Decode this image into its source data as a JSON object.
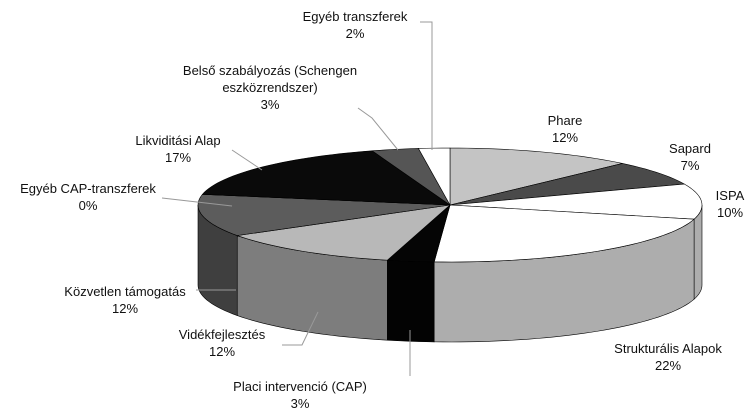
{
  "chart_data": {
    "type": "pie",
    "categories": [
      "Phare",
      "Sapard",
      "ISPA",
      "Strukturális Alapok",
      "Placi intervenció (CAP)",
      "Vidékfejlesztés",
      "Közvetlen támogatás",
      "Egyéb CAP-transzferek",
      "Likviditási Alap",
      "Belső szabályozás (Schengen eszközrendszer)",
      "Egyéb transzferek"
    ],
    "values": [
      12,
      7,
      10,
      22,
      3,
      12,
      12,
      0,
      17,
      3,
      2
    ],
    "value_labels": [
      "12%",
      "7%",
      "10%",
      "22%",
      "3%",
      "12%",
      "12%",
      "0%",
      "17%",
      "3%",
      "2%"
    ],
    "colors": [
      "#c4c4c4",
      "#4a4a4a",
      "#ffffff",
      "#ffffff",
      "#050505",
      "#b8b8b8",
      "#5c5c5c",
      "#808080",
      "#0a0a0a",
      "#555555",
      "#ffffff"
    ]
  }
}
